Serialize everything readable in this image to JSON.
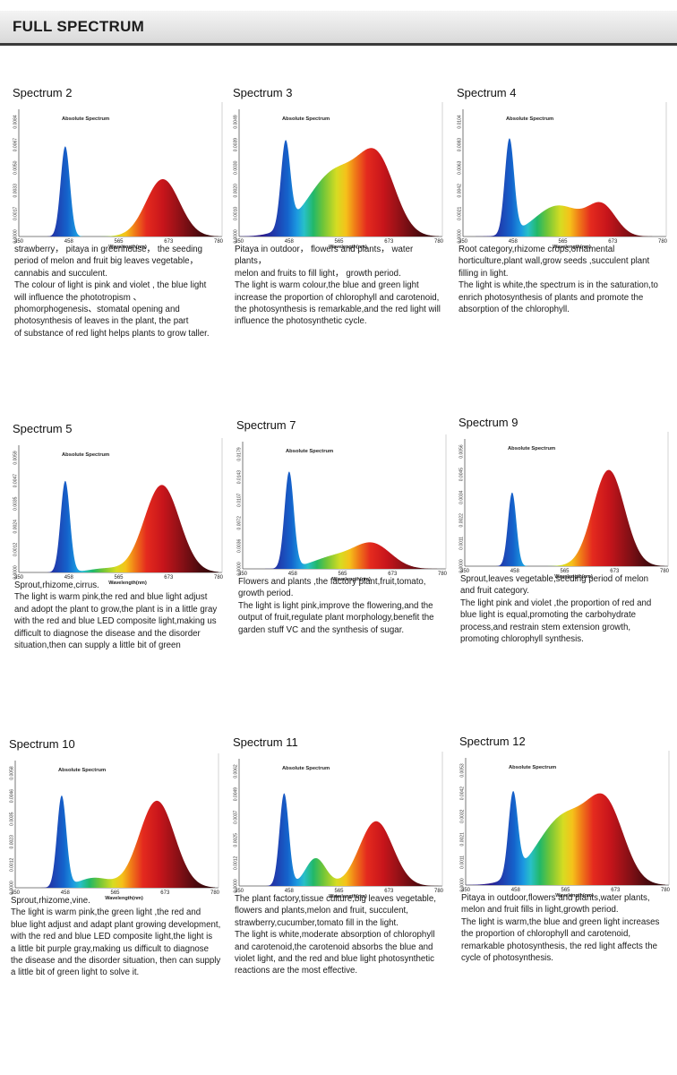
{
  "header": {
    "title": "FULL SPECTRUM"
  },
  "axis": {
    "x_ticks": [
      "350",
      "458",
      "565",
      "673",
      "780"
    ],
    "xlabel": "Wavelength(nm)",
    "chart_label": "Absolute Spectrum"
  },
  "cards": [
    {
      "title": "Spectrum 2",
      "desc": [
        "strawberry， pitaya in greenhouse， the seeding",
        "period of  melon and  fruit big leaves vegetable，",
        "cannabis and succulent.",
        "The colour of light is pink and violet , the blue light",
        "will influence the phototropism 、",
        "phomorphogenesis、stomatal opening and",
        "photosynthesis of leaves in the plant, the part",
        "of substance of red light helps plants to grow taller."
      ]
    },
    {
      "title": "Spectrum 3",
      "desc": [
        "Pitaya in outdoor， flowers and plants， water plants，",
        "melon and fruits to fill light， growth period.",
        "The light is warm colour,the blue and green light",
        "increase the proportion of chlorophyll and carotenoid,",
        "the photosynthesis is remarkable,and the red light will",
        "influence the photosynthetic cycle."
      ]
    },
    {
      "title": "Spectrum 4",
      "desc": [
        "Root category,rhizome crops,ornamental",
        "horticulture,plant wall,grow seeds ,succulent plant",
        "filling in light.",
        "The light is white,the spectrum is in the saturation,to",
        "enrich photosynthesis of plants and promote the",
        "absorption of the chlorophyll."
      ]
    },
    {
      "title": "Spectrum 5",
      "desc": [
        "Sprout,rhizome,cirrus.",
        "The light is warm pink,the red and blue light adjust",
        "and adopt the plant to grow,the plant is in a little gray",
        "with the red and blue LED composite light,making us",
        "difficult to diagnose the disease and the disorder",
        "situation,then can supply a little bit of green"
      ]
    },
    {
      "title": "Spectrum 7",
      "desc": [
        "Flowers and plants ,the factory plant,fruit,tomato,",
        "growth period.",
        "The light is light pink,improve the flowering,and the",
        "output of fruit,regulate plant morphology,benefit the",
        "garden stuff VC and the synthesis of sugar."
      ]
    },
    {
      "title": "Spectrum 9",
      "desc": [
        "Sprout,leaves vegetable,seeding period of melon",
        "and fruit category.",
        "The light pink and violet ,the proportion of red and",
        "blue light is equal,promoting the carbohydrate",
        "process,and restrain stem extension growth,",
        "promoting chlorophyll synthesis."
      ]
    },
    {
      "title": "Spectrum 10",
      "desc": [
        "Sprout,rhizome,vine.",
        "The light is warm pink,the green light ,the red and",
        "blue light adjust and adapt plant growing development,",
        "with the red and blue LED composite light,the light is",
        "a little bit purple gray,making us difficult to diagnose",
        "the disease and the disorder situation, then can supply",
        "a little bit of green light to solve it."
      ]
    },
    {
      "title": "Spectrum 11",
      "desc": [
        "The plant factory,tissue culture,big leaves vegetable,",
        "flowers and plants,melon and fruit, succulent,",
        "strawberry,cucumber,tomato fill in the light.",
        "The light is white,moderate absorption of chlorophyll",
        "and carotenoid,the carotenoid absorbs the blue and",
        "violet light, and the red and blue light photosynthetic",
        "reactions are the most effective."
      ]
    },
    {
      "title": "Spectrum 12",
      "desc": [
        "Pitaya in outdoor,flowers and plants,water plants,",
        "melon and fruit fills in light,growth period.",
        "The light is warm,the blue and green light increases",
        "the proportion of chlorophyll and carotenoid,",
        "remarkable photosynthesis, the red light affects the",
        "cycle of photosynthesis."
      ]
    }
  ],
  "chart_data": [
    {
      "type": "area",
      "title": "Spectrum 2",
      "xlabel": "Wavelength(nm)",
      "xlim": [
        350,
        780
      ],
      "y_ticks": [
        "0.0000",
        "0.0017",
        "0.0033",
        "0.0050",
        "0.0067",
        "0.0084"
      ],
      "ymax": 0.0084,
      "series": [
        {
          "name": "blue",
          "center": 450,
          "width": 10,
          "height": 0.0066
        },
        {
          "name": "red",
          "center": 660,
          "width": 36,
          "height": 0.0042
        }
      ]
    },
    {
      "type": "area",
      "title": "Spectrum 3",
      "xlabel": "Wavelength(nm)",
      "xlim": [
        350,
        780
      ],
      "y_ticks": [
        "0.0000",
        "0.0010",
        "0.0020",
        "0.0030",
        "0.0039",
        "0.0049"
      ],
      "ymax": 0.0049,
      "series": [
        {
          "name": "blue",
          "center": 450,
          "width": 10,
          "height": 0.0036
        },
        {
          "name": "phosphor",
          "center": 560,
          "width": 60,
          "height": 0.0028
        },
        {
          "name": "red",
          "center": 650,
          "width": 38,
          "height": 0.0027
        }
      ]
    },
    {
      "type": "area",
      "title": "Spectrum 4",
      "xlabel": "Wavelength(nm)",
      "xlim": [
        350,
        780
      ],
      "y_ticks": [
        "0.0000",
        "0.0021",
        "0.0042",
        "0.0063",
        "0.0083",
        "0.0104"
      ],
      "ymax": 0.0104,
      "series": [
        {
          "name": "blue",
          "center": 450,
          "width": 10,
          "height": 0.0086
        },
        {
          "name": "phosphor",
          "center": 555,
          "width": 50,
          "height": 0.0028
        },
        {
          "name": "red",
          "center": 650,
          "width": 30,
          "height": 0.0026
        }
      ]
    },
    {
      "type": "area",
      "title": "Spectrum 5",
      "xlabel": "Wavelength(nm)",
      "xlim": [
        350,
        780
      ],
      "y_ticks": [
        "0.0000",
        "0.0012",
        "0.0024",
        "0.0035",
        "0.0047",
        "0.0059"
      ],
      "ymax": 0.0059,
      "series": [
        {
          "name": "blue",
          "center": 450,
          "width": 10,
          "height": 0.0047
        },
        {
          "name": "phosphor",
          "center": 535,
          "width": 35,
          "height": 0.0002
        },
        {
          "name": "red",
          "center": 658,
          "width": 38,
          "height": 0.0045
        }
      ]
    },
    {
      "type": "area",
      "title": "Spectrum 7",
      "xlabel": "Wavelength(nm)",
      "xlim": [
        350,
        780
      ],
      "y_ticks": [
        "0.0000",
        "0.0036",
        "0.0072",
        "0.0107",
        "0.0143",
        "0.0179"
      ],
      "ymax": 0.0179,
      "series": [
        {
          "name": "blue",
          "center": 450,
          "width": 10,
          "height": 0.015
        },
        {
          "name": "phosphor",
          "center": 545,
          "width": 45,
          "height": 0.0018
        },
        {
          "name": "red",
          "center": 630,
          "width": 40,
          "height": 0.0038
        }
      ]
    },
    {
      "type": "area",
      "title": "Spectrum 9",
      "xlabel": "Wavelength(nm)",
      "xlim": [
        350,
        780
      ],
      "y_ticks": [
        "0.0000",
        "0.0011",
        "0.0022",
        "0.0034",
        "0.0045",
        "0.0056"
      ],
      "ymax": 0.0056,
      "series": [
        {
          "name": "blue",
          "center": 452,
          "width": 9,
          "height": 0.0036
        },
        {
          "name": "red",
          "center": 660,
          "width": 34,
          "height": 0.0047
        }
      ]
    },
    {
      "type": "area",
      "title": "Spectrum 10",
      "xlabel": "Wavelength(nm)",
      "xlim": [
        350,
        780
      ],
      "y_ticks": [
        "0.0000",
        "0.0012",
        "0.0023",
        "0.0035",
        "0.0046",
        "0.0058"
      ],
      "ymax": 0.0058,
      "series": [
        {
          "name": "blue",
          "center": 450,
          "width": 10,
          "height": 0.0046
        },
        {
          "name": "phosphor",
          "center": 520,
          "width": 35,
          "height": 0.0005
        },
        {
          "name": "red",
          "center": 655,
          "width": 38,
          "height": 0.0044
        }
      ]
    },
    {
      "type": "area",
      "title": "Spectrum 11",
      "xlabel": "Wavelength(nm)",
      "xlim": [
        350,
        780
      ],
      "y_ticks": [
        "0.0000",
        "0.0012",
        "0.0025",
        "0.0037",
        "0.0049",
        "0.0062"
      ],
      "ymax": 0.0062,
      "series": [
        {
          "name": "blue",
          "center": 447,
          "width": 10,
          "height": 0.005
        },
        {
          "name": "phosphor",
          "center": 515,
          "width": 22,
          "height": 0.0015
        },
        {
          "name": "red",
          "center": 645,
          "width": 36,
          "height": 0.0035
        }
      ]
    },
    {
      "type": "area",
      "title": "Spectrum 12",
      "xlabel": "Wavelength(nm)",
      "xlim": [
        350,
        780
      ],
      "y_ticks": [
        "0.0000",
        "0.0011",
        "0.0021",
        "0.0032",
        "0.0042",
        "0.0053"
      ],
      "ymax": 0.0053,
      "series": [
        {
          "name": "blue",
          "center": 452,
          "width": 10,
          "height": 0.0038
        },
        {
          "name": "phosphor",
          "center": 565,
          "width": 60,
          "height": 0.0032
        },
        {
          "name": "red",
          "center": 655,
          "width": 38,
          "height": 0.003
        }
      ]
    }
  ]
}
